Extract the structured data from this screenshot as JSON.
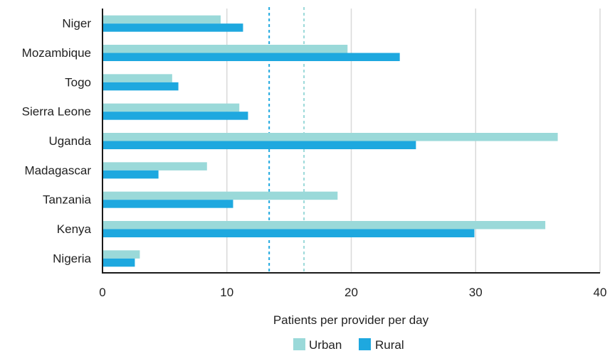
{
  "chart_data": {
    "type": "bar",
    "orientation": "horizontal",
    "title": "",
    "xlabel": "Patients per provider per day",
    "ylabel": "",
    "xlim": [
      0,
      40
    ],
    "xticks": [
      0,
      10,
      20,
      30,
      40
    ],
    "grid": "vertical",
    "categories": [
      "Niger",
      "Mozambique",
      "Togo",
      "Sierra Leone",
      "Uganda",
      "Madagascar",
      "Tanzania",
      "Kenya",
      "Nigeria"
    ],
    "series": [
      {
        "name": "Urban",
        "color": "#9ad9d9",
        "values": [
          9.5,
          19.7,
          5.6,
          11.0,
          36.6,
          8.4,
          18.9,
          35.6,
          3.0
        ]
      },
      {
        "name": "Rural",
        "color": "#1ea8df",
        "values": [
          11.3,
          23.9,
          6.1,
          11.7,
          25.2,
          4.5,
          10.5,
          29.9,
          2.6
        ]
      }
    ],
    "reference_lines": [
      {
        "series": "Rural",
        "value": 13.4,
        "color": "#1ea8df",
        "style": "dashed"
      },
      {
        "series": "Urban",
        "value": 16.2,
        "color": "#9ad9d9",
        "style": "dashed"
      }
    ],
    "legend_position": "bottom-center"
  }
}
